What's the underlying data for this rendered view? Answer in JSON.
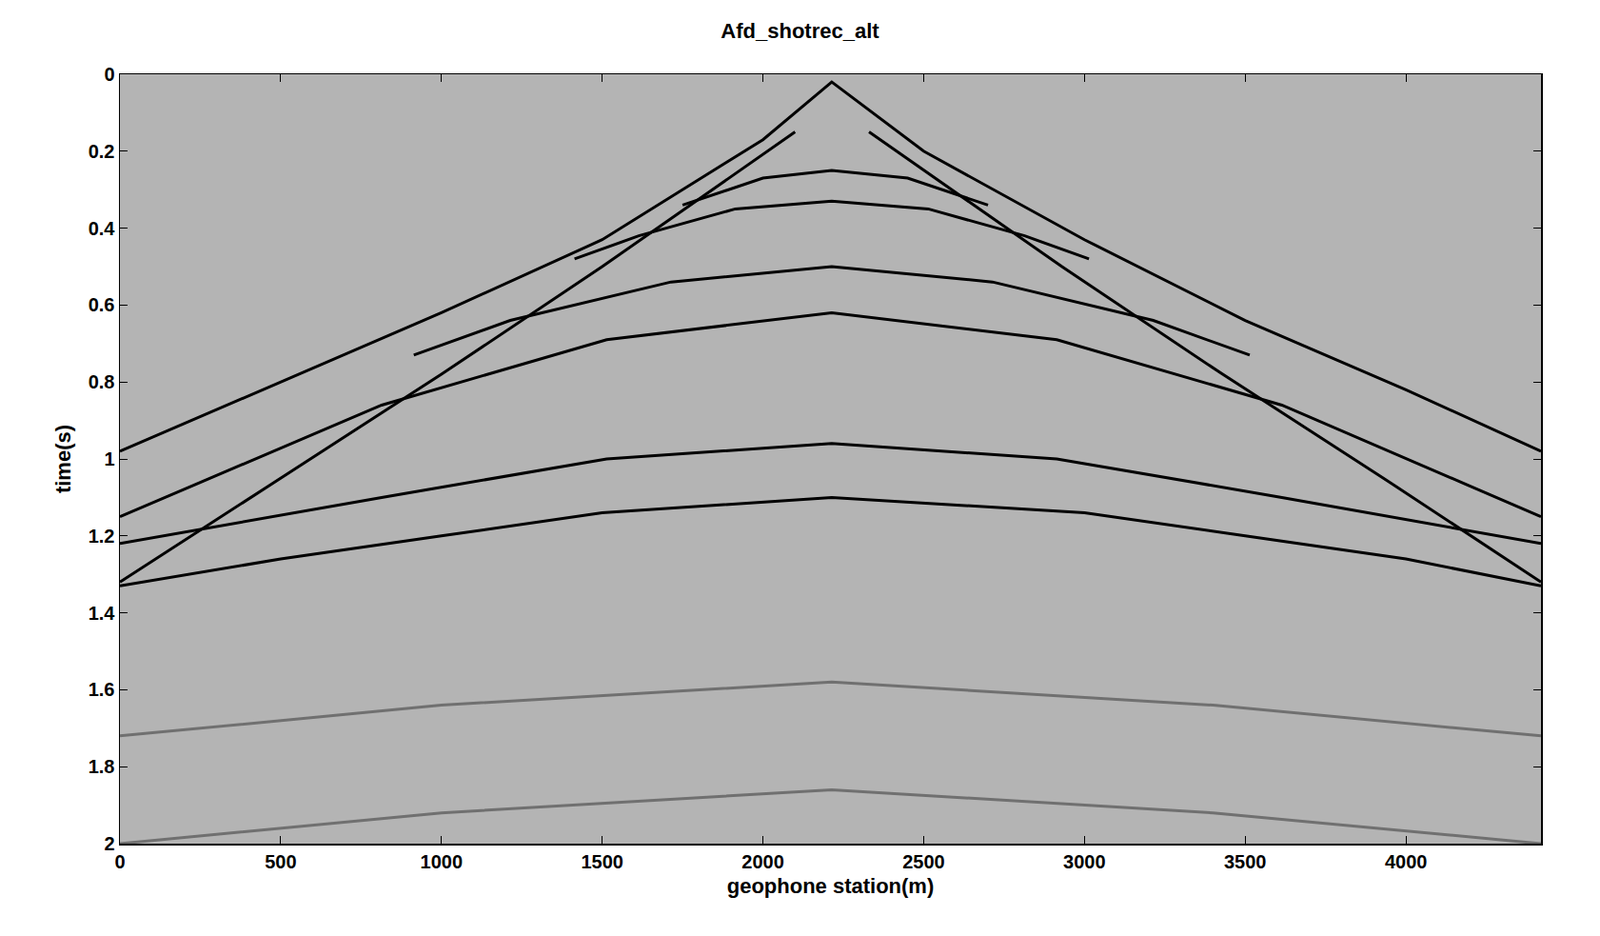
{
  "chart_data": {
    "type": "line",
    "title": "Afd_shotrec_alt",
    "x_label": "geophone station(m)",
    "y_label": "time(s)",
    "xlim": [
      0,
      4420
    ],
    "xticks": [
      0,
      500,
      1000,
      1500,
      2000,
      2500,
      3000,
      3500,
      4000
    ],
    "ylim": [
      0,
      2
    ],
    "yticks": [
      0,
      0.2,
      0.4,
      0.6,
      0.8,
      1,
      1.2,
      1.4,
      1.6,
      1.8,
      2
    ],
    "grid": false,
    "series": [
      {
        "color": "#000000",
        "line_style": "solid",
        "x": [
          0,
          500,
          1000,
          1500,
          2000,
          2214,
          2500,
          3000,
          3500,
          4000,
          4420
        ],
        "values": [
          0.98,
          0.8,
          0.62,
          0.43,
          0.17,
          0.02,
          0.2,
          0.43,
          0.64,
          0.82,
          0.98
        ]
      },
      {
        "color": "#000000",
        "line_style": "solid",
        "x": [
          1750,
          2000,
          2214,
          2450,
          2700
        ],
        "values": [
          0.34,
          0.27,
          0.25,
          0.27,
          0.34
        ]
      },
      {
        "color": "#000000",
        "line_style": "solid",
        "x": [
          1414,
          1614,
          1914,
          2214,
          2514,
          2814,
          3014
        ],
        "values": [
          0.48,
          0.42,
          0.35,
          0.33,
          0.35,
          0.42,
          0.48
        ]
      },
      {
        "color": "#000000",
        "line_style": "solid",
        "x": [
          914,
          1214,
          1714,
          2214,
          2714,
          3214,
          3514
        ],
        "values": [
          0.73,
          0.64,
          0.54,
          0.5,
          0.54,
          0.64,
          0.73
        ]
      },
      {
        "color": "#000000",
        "line_style": "solid",
        "x": [
          0,
          814,
          1514,
          2214,
          2914,
          3614,
          4420
        ],
        "values": [
          1.15,
          0.86,
          0.69,
          0.62,
          0.69,
          0.86,
          1.15
        ]
      },
      {
        "color": "#000000",
        "line_style": "solid",
        "x": [
          0,
          814,
          1514,
          2214,
          2914,
          3614,
          4420
        ],
        "values": [
          1.22,
          1.1,
          1.0,
          0.96,
          1.0,
          1.1,
          1.22
        ]
      },
      {
        "color": "#000000",
        "line_style": "solid",
        "x": [
          0,
          500,
          1000,
          1500,
          2214,
          3000,
          3500,
          4000,
          4420
        ],
        "values": [
          1.33,
          1.26,
          1.2,
          1.14,
          1.1,
          1.14,
          1.2,
          1.26,
          1.33
        ]
      },
      {
        "color": "#000000",
        "line_style": "solid",
        "x": [
          2100,
          1500,
          1000,
          500,
          0
        ],
        "values": [
          0.15,
          0.5,
          0.78,
          1.05,
          1.32
        ]
      },
      {
        "color": "#000000",
        "line_style": "solid",
        "x": [
          2330,
          2930,
          3430,
          3930,
          4420
        ],
        "values": [
          0.15,
          0.5,
          0.78,
          1.05,
          1.32
        ]
      },
      {
        "color": "#707070",
        "line_style": "solid",
        "x": [
          0,
          1000,
          2214,
          3400,
          4420
        ],
        "values": [
          1.72,
          1.64,
          1.58,
          1.64,
          1.72
        ]
      },
      {
        "color": "#707070",
        "line_style": "solid",
        "x": [
          0,
          1000,
          2214,
          3400,
          4420
        ],
        "values": [
          2.0,
          1.92,
          1.86,
          1.92,
          2.0
        ]
      }
    ]
  }
}
